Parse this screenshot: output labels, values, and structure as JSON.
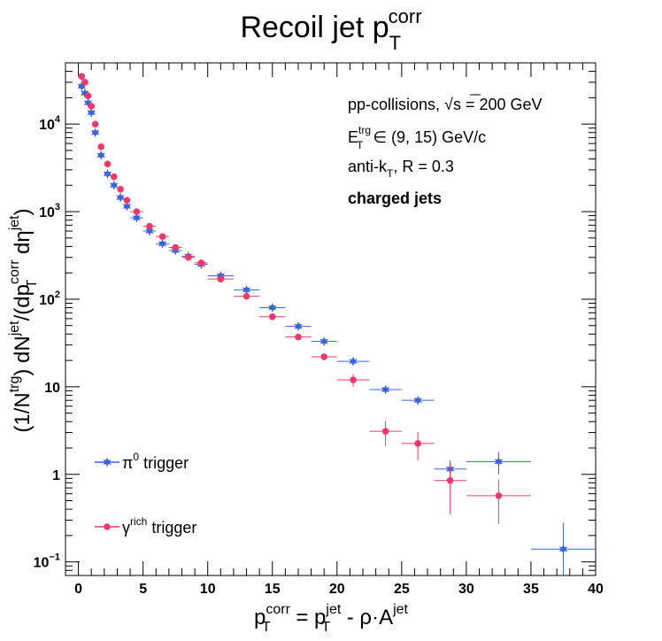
{
  "chart_data": {
    "type": "scatter",
    "title": {
      "base": "Recoil jet p",
      "sub": "T",
      "sup": "corr"
    },
    "xlabel": {
      "a": "p",
      "a_sup": "corr",
      "a_sub": "T",
      "eq": " = p",
      "b_sup": "jet",
      "b_sub": "T",
      "c": " - ρ·A",
      "c_sup": "jet"
    },
    "ylabel": {
      "p1": "(1/N",
      "p1_sup": "trg",
      "p2": ") dN",
      "p2_sup": "jet",
      "p3": "/(dp",
      "p3_sup": "corr",
      "p3_sub": "T",
      "p4": " dη",
      "p4_sup": "jet",
      "p5": ")"
    },
    "xlim": [
      -1,
      40
    ],
    "ylim": [
      0.07,
      50000
    ],
    "y_scale": "log",
    "x_ticks": [
      "0",
      "5",
      "10",
      "15",
      "20",
      "25",
      "30",
      "35",
      "40"
    ],
    "y_ticks": [
      {
        "value": 0.1,
        "base": "10",
        "sup": "−1"
      },
      {
        "value": 1,
        "base": "1",
        "sup": ""
      },
      {
        "value": 10,
        "base": "10",
        "sup": ""
      },
      {
        "value": 100,
        "base": "10",
        "sup": "2"
      },
      {
        "value": 1000,
        "base": "10",
        "sup": "3"
      },
      {
        "value": 10000,
        "base": "10",
        "sup": "4"
      }
    ],
    "annotations": {
      "line1": "pp-collisions, ",
      "sqrt_s": "s",
      "line1_end": " = 200 GeV",
      "line2_base": "E",
      "line2_sup": "trg",
      "line2_sub": "T",
      "line2_end": " ∈ (9, 15) GeV/c",
      "line3_base": "anti-k",
      "line3_sub": "T",
      "line3_end": ", R = 0.3",
      "line4": "charged jets"
    },
    "series": [
      {
        "name_base": "π",
        "name_sup": "0",
        "name_end": " trigger",
        "color": "#3a63e0",
        "marker": "star",
        "points": [
          {
            "x": 0.25,
            "y": 27000,
            "xerr": 0.25,
            "yerr": 0
          },
          {
            "x": 0.5,
            "y": 22500,
            "xerr": 0.25,
            "yerr": 0
          },
          {
            "x": 0.75,
            "y": 17500,
            "xerr": 0.25,
            "yerr": 0
          },
          {
            "x": 1.0,
            "y": 13500,
            "xerr": 0.25,
            "yerr": 0
          },
          {
            "x": 1.3,
            "y": 8000,
            "xerr": 0.25,
            "yerr": 0
          },
          {
            "x": 1.75,
            "y": 4400,
            "xerr": 0.25,
            "yerr": 0
          },
          {
            "x": 2.25,
            "y": 2700,
            "xerr": 0.25,
            "yerr": 0
          },
          {
            "x": 2.75,
            "y": 2000,
            "xerr": 0.25,
            "yerr": 0
          },
          {
            "x": 3.25,
            "y": 1450,
            "xerr": 0.25,
            "yerr": 0
          },
          {
            "x": 3.75,
            "y": 1150,
            "xerr": 0.25,
            "yerr": 0
          },
          {
            "x": 4.5,
            "y": 850,
            "xerr": 0.5,
            "yerr": 0
          },
          {
            "x": 5.5,
            "y": 600,
            "xerr": 0.5,
            "yerr": 0
          },
          {
            "x": 6.5,
            "y": 430,
            "xerr": 0.5,
            "yerr": 0
          },
          {
            "x": 7.5,
            "y": 360,
            "xerr": 0.5,
            "yerr": 0
          },
          {
            "x": 8.5,
            "y": 310,
            "xerr": 0.5,
            "yerr": 0
          },
          {
            "x": 9.5,
            "y": 250,
            "xerr": 0.5,
            "yerr": 0
          },
          {
            "x": 11,
            "y": 185,
            "xerr": 1,
            "yerr": 0
          },
          {
            "x": 13,
            "y": 128,
            "xerr": 1,
            "yerr": 0
          },
          {
            "x": 15,
            "y": 80,
            "xerr": 1,
            "yerr": 0
          },
          {
            "x": 17,
            "y": 49,
            "xerr": 1,
            "yerr": 0
          },
          {
            "x": 19,
            "y": 33,
            "xerr": 1,
            "yerr": 0
          },
          {
            "x": 21.25,
            "y": 19.5,
            "xerr": 1.25,
            "yerr": 0
          },
          {
            "x": 23.75,
            "y": 9.3,
            "xerr": 1.25,
            "yerr": 0
          },
          {
            "x": 26.25,
            "y": 7,
            "xerr": 1.25,
            "yerr": 0.8
          },
          {
            "x": 28.75,
            "y": 1.15,
            "xerr": 1.25,
            "yerr": 0.3
          },
          {
            "x": 32.5,
            "y": 1.4,
            "xerr": 2.5,
            "yerr": 0.4
          },
          {
            "x": 37.5,
            "y": 0.14,
            "xerr": 2.5,
            "yerr": 0.14
          }
        ]
      },
      {
        "name_base": "γ",
        "name_sup": "rich",
        "name_end": " trigger",
        "color": "#f0396a",
        "marker": "circle",
        "points": [
          {
            "x": 0.25,
            "y": 35000,
            "xerr": 0.25,
            "yerr": 0
          },
          {
            "x": 0.5,
            "y": 30000,
            "xerr": 0.25,
            "yerr": 0
          },
          {
            "x": 0.75,
            "y": 21000,
            "xerr": 0.25,
            "yerr": 0
          },
          {
            "x": 1.0,
            "y": 16000,
            "xerr": 0.25,
            "yerr": 0
          },
          {
            "x": 1.3,
            "y": 10000,
            "xerr": 0.25,
            "yerr": 0
          },
          {
            "x": 1.75,
            "y": 5500,
            "xerr": 0.25,
            "yerr": 0
          },
          {
            "x": 2.25,
            "y": 3500,
            "xerr": 0.25,
            "yerr": 0
          },
          {
            "x": 2.75,
            "y": 2500,
            "xerr": 0.25,
            "yerr": 0
          },
          {
            "x": 3.25,
            "y": 1800,
            "xerr": 0.25,
            "yerr": 0
          },
          {
            "x": 3.75,
            "y": 1350,
            "xerr": 0.25,
            "yerr": 0
          },
          {
            "x": 4.5,
            "y": 1000,
            "xerr": 0.5,
            "yerr": 0
          },
          {
            "x": 5.5,
            "y": 680,
            "xerr": 0.5,
            "yerr": 0
          },
          {
            "x": 6.5,
            "y": 520,
            "xerr": 0.5,
            "yerr": 0
          },
          {
            "x": 7.5,
            "y": 390,
            "xerr": 0.5,
            "yerr": 0
          },
          {
            "x": 8.5,
            "y": 300,
            "xerr": 0.5,
            "yerr": 0
          },
          {
            "x": 9.5,
            "y": 260,
            "xerr": 0.5,
            "yerr": 0
          },
          {
            "x": 11,
            "y": 170,
            "xerr": 1,
            "yerr": 0
          },
          {
            "x": 13,
            "y": 108,
            "xerr": 1,
            "yerr": 0
          },
          {
            "x": 15,
            "y": 63,
            "xerr": 1,
            "yerr": 0
          },
          {
            "x": 17,
            "y": 37,
            "xerr": 1,
            "yerr": 0
          },
          {
            "x": 19,
            "y": 22,
            "xerr": 1,
            "yerr": 2
          },
          {
            "x": 21.25,
            "y": 12,
            "xerr": 1.25,
            "yerr": 2
          },
          {
            "x": 23.75,
            "y": 3.1,
            "xerr": 1.25,
            "yerr": 1
          },
          {
            "x": 26.25,
            "y": 2.25,
            "xerr": 1.25,
            "yerr": 0.8
          },
          {
            "x": 28.75,
            "y": 0.85,
            "xerr": 1.25,
            "yerr": 0.5
          },
          {
            "x": 32.5,
            "y": 0.57,
            "xerr": 2.5,
            "yerr": 0.3
          }
        ]
      }
    ],
    "legend_placement": "bottom-left",
    "grid": false
  }
}
